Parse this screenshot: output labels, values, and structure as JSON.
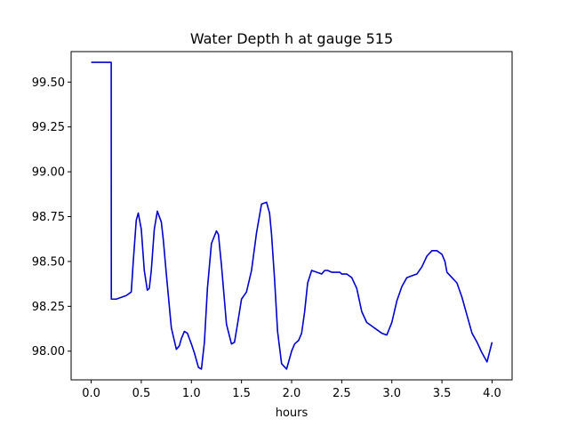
{
  "chart_data": {
    "type": "line",
    "title": "Water Depth h at gauge 515",
    "xlabel": "hours",
    "ylabel": "",
    "xlim": [
      -0.2,
      4.2
    ],
    "ylim": [
      97.84,
      99.67
    ],
    "grid": false,
    "legend": false,
    "x_ticks": [
      0.0,
      0.5,
      1.0,
      1.5,
      2.0,
      2.5,
      3.0,
      3.5,
      4.0
    ],
    "x_tick_labels": [
      "0.0",
      "0.5",
      "1.0",
      "1.5",
      "2.0",
      "2.5",
      "3.0",
      "3.5",
      "4.0"
    ],
    "y_ticks": [
      98.0,
      98.25,
      98.5,
      98.75,
      99.0,
      99.25,
      99.5
    ],
    "y_tick_labels": [
      "98.00",
      "98.25",
      "98.50",
      "98.75",
      "99.00",
      "99.25",
      "99.50"
    ],
    "line_color": "#0000cc",
    "series": [
      {
        "x": [
          0.0,
          0.2,
          0.201,
          0.25,
          0.3,
          0.35,
          0.4,
          0.42,
          0.45,
          0.47,
          0.5,
          0.53,
          0.56,
          0.58,
          0.6,
          0.63,
          0.66,
          0.7,
          0.72,
          0.75,
          0.8,
          0.85,
          0.88,
          0.9,
          0.93,
          0.96,
          0.98,
          1.0,
          1.03,
          1.07,
          1.1,
          1.13,
          1.16,
          1.2,
          1.25,
          1.27,
          1.3,
          1.35,
          1.4,
          1.43,
          1.46,
          1.5,
          1.55,
          1.6,
          1.65,
          1.7,
          1.75,
          1.78,
          1.8,
          1.83,
          1.86,
          1.9,
          1.95,
          2.0,
          2.03,
          2.07,
          2.1,
          2.13,
          2.16,
          2.2,
          2.25,
          2.3,
          2.33,
          2.36,
          2.4,
          2.45,
          2.48,
          2.5,
          2.55,
          2.6,
          2.65,
          2.7,
          2.75,
          2.8,
          2.85,
          2.9,
          2.95,
          3.0,
          3.05,
          3.1,
          3.15,
          3.2,
          3.25,
          3.3,
          3.35,
          3.4,
          3.45,
          3.5,
          3.53,
          3.55,
          3.6,
          3.65,
          3.7,
          3.75,
          3.8,
          3.85,
          3.9,
          3.95,
          4.0
        ],
        "y": [
          99.61,
          99.61,
          98.29,
          98.29,
          98.3,
          98.31,
          98.33,
          98.5,
          98.73,
          98.77,
          98.68,
          98.45,
          98.34,
          98.35,
          98.45,
          98.68,
          98.78,
          98.72,
          98.62,
          98.43,
          98.13,
          98.01,
          98.03,
          98.07,
          98.11,
          98.1,
          98.07,
          98.04,
          97.99,
          97.91,
          97.9,
          98.05,
          98.35,
          98.6,
          98.67,
          98.65,
          98.48,
          98.15,
          98.04,
          98.05,
          98.15,
          98.29,
          98.33,
          98.45,
          98.66,
          98.82,
          98.83,
          98.77,
          98.65,
          98.4,
          98.11,
          97.93,
          97.9,
          98.0,
          98.04,
          98.06,
          98.1,
          98.22,
          98.38,
          98.45,
          98.44,
          98.43,
          98.45,
          98.45,
          98.44,
          98.44,
          98.44,
          98.43,
          98.43,
          98.41,
          98.35,
          98.22,
          98.16,
          98.14,
          98.12,
          98.1,
          98.09,
          98.16,
          98.28,
          98.36,
          98.41,
          98.42,
          98.43,
          98.47,
          98.53,
          98.56,
          98.56,
          98.54,
          98.5,
          98.44,
          98.41,
          98.38,
          98.3,
          98.2,
          98.1,
          98.05,
          97.99,
          97.94,
          98.05
        ]
      }
    ]
  }
}
